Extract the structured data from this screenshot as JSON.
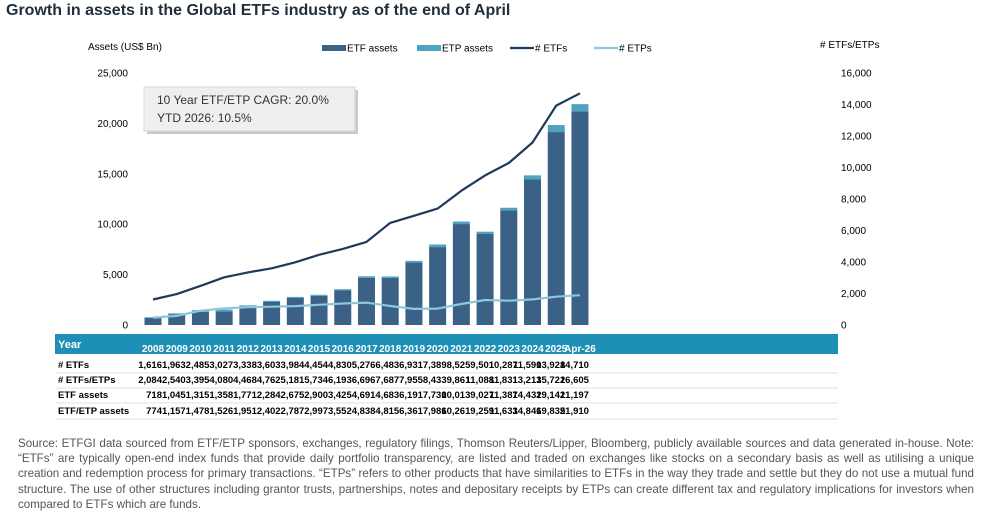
{
  "title": "Growth in assets in the Global ETFs industry as of the end of April",
  "left_axis_label": "Assets (US$ Bn)",
  "right_axis_label": "# ETFs/ETPs",
  "annotation_lines": [
    "10 Year ETF/ETP CAGR: 20.0%",
    "YTD 2026: 10.5%"
  ],
  "footnote": "Source: ETFGI data sourced from ETF/ETP sponsors, exchanges, regulatory filings, Thomson Reuters/Lipper, Bloomberg, publicly available sources and data generated in-house. Note: “ETFs” are typically open-end index funds that provide daily portfolio transparency, are listed and traded on exchanges like stocks on a secondary basis as well as utilising a unique creation and redemption process for primary transactions. “ETPs” refers to other products that have similarities to ETFs in the way they trade and settle but they do not use a mutual fund structure. The use of other structures including grantor trusts, partnerships, notes and depositary receipts by ETPs can create different tax and regulatory implications for investors when compared to ETFs which are funds.",
  "colors": {
    "etf_assets": "#3b6186",
    "etp_assets": "#4fa3c2",
    "num_etfs": "#1f3a5c",
    "num_etps": "#8ec7dc",
    "table_header": "#1e8fb5",
    "title": "#1f2d3d"
  },
  "chart_data": {
    "type": "bar",
    "categories": [
      "2008",
      "2009",
      "2010",
      "2011",
      "2012",
      "2013",
      "2014",
      "2015",
      "2016",
      "2017",
      "2018",
      "2019",
      "2020",
      "2021",
      "2022",
      "2023",
      "2024",
      "2025",
      "Apr-26"
    ],
    "left_axis": {
      "label": "Assets (US$ Bn)",
      "ylim": [
        0,
        25000
      ],
      "ticks": [
        "0",
        "5,000",
        "10,000",
        "15,000",
        "20,000",
        "25,000"
      ]
    },
    "right_axis": {
      "label": "# ETFs/ETPs",
      "ylim": [
        0,
        16000
      ],
      "ticks": [
        "0",
        "2,000",
        "4,000",
        "6,000",
        "8,000",
        "10,000",
        "12,000",
        "14,000",
        "16,000"
      ]
    },
    "legend_position": "top",
    "grid": false,
    "series": [
      {
        "name": "ETF assets",
        "type": "bar",
        "axis": "left",
        "values": [
          718,
          1045,
          1315,
          1358,
          1771,
          2284,
          2675,
          2900,
          3425,
          4691,
          4683,
          6191,
          7730,
          10013,
          9027,
          11387,
          14432,
          19141,
          21197
        ]
      },
      {
        "name": "ETP assets",
        "type": "bar",
        "axis": "left",
        "stacked": true,
        "values": [
          56,
          112,
          163,
          168,
          180,
          118,
          112,
          97,
          127,
          147,
          132,
          170,
          256,
          248,
          232,
          246,
          414,
          694,
          713
        ]
      },
      {
        "name": "# ETFs",
        "type": "line",
        "axis": "right",
        "values": [
          1616,
          1963,
          2485,
          3027,
          3338,
          3603,
          3984,
          4454,
          4830,
          5276,
          6483,
          6931,
          7389,
          8525,
          9501,
          10287,
          11590,
          13928,
          14710
        ]
      },
      {
        "name": "# ETPs",
        "type": "line",
        "axis": "right",
        "values": [
          468,
          577,
          910,
          1053,
          1130,
          1159,
          1197,
          1280,
          1363,
          1420,
          1204,
          1024,
          1044,
          1336,
          1587,
          1544,
          1623,
          1794,
          1895
        ]
      }
    ],
    "table": {
      "header": "Year",
      "rows": [
        {
          "label": "# ETFs",
          "values": [
            "1,616",
            "1,963",
            "2,485",
            "3,027",
            "3,338",
            "3,603",
            "3,984",
            "4,454",
            "4,830",
            "5,276",
            "6,483",
            "6,931",
            "7,389",
            "8,525",
            "9,501",
            "10,287",
            "11,590",
            "13,928",
            "14,710"
          ]
        },
        {
          "label": "# ETFs/ETPs",
          "values": [
            "2,084",
            "2,540",
            "3,395",
            "4,080",
            "4,468",
            "4,762",
            "5,181",
            "5,734",
            "6,193",
            "6,696",
            "7,687",
            "7,955",
            "8,433",
            "9,861",
            "11,088",
            "11,831",
            "13,213",
            "15,722",
            "16,605"
          ]
        },
        {
          "label": "ETF assets",
          "values": [
            "718",
            "1,045",
            "1,315",
            "1,358",
            "1,771",
            "2,284",
            "2,675",
            "2,900",
            "3,425",
            "4,691",
            "4,683",
            "6,191",
            "7,730",
            "10,013",
            "9,027",
            "11,387",
            "14,432",
            "19,141",
            "21,197"
          ]
        },
        {
          "label": "ETF/ETP assets",
          "values": [
            "774",
            "1,157",
            "1,478",
            "1,526",
            "1,951",
            "2,402",
            "2,787",
            "2,997",
            "3,552",
            "4,838",
            "4,815",
            "6,361",
            "7,986",
            "10,261",
            "9,259",
            "11,633",
            "14,846",
            "19,835",
            "21,910"
          ]
        }
      ]
    }
  }
}
